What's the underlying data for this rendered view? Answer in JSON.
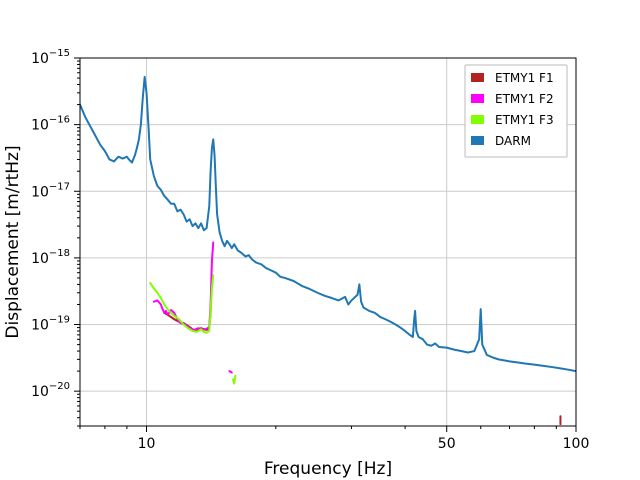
{
  "chart_data": {
    "type": "line",
    "xscale": "log",
    "yscale": "log",
    "xlim": [
      7,
      100
    ],
    "ylim": [
      3e-21,
      1e-15
    ],
    "xlabel": "Frequency [Hz]",
    "ylabel": "Displacement [m/rtHz]",
    "grid": true,
    "legend_position": "top-right",
    "x_ticks": [
      {
        "value": 10,
        "label": "10"
      },
      {
        "value": 50,
        "label": "50"
      },
      {
        "value": 100,
        "label": "100"
      }
    ],
    "x_minor_ticks": [
      7,
      8,
      9,
      20,
      30,
      40,
      60,
      70,
      80,
      90
    ],
    "y_ticks": [
      {
        "value": 1e-20,
        "exp": "−20"
      },
      {
        "value": 1e-19,
        "exp": "−19"
      },
      {
        "value": 1e-18,
        "exp": "−18"
      },
      {
        "value": 1e-17,
        "exp": "−17"
      },
      {
        "value": 1e-16,
        "exp": "−16"
      },
      {
        "value": 1e-15,
        "exp": "−15"
      }
    ],
    "series": [
      {
        "name": "ETMY1 F1",
        "color": "#b22222",
        "segments": [
          [
            [
              11.0,
              1.5e-19
            ],
            [
              11.3,
              1.35e-19
            ],
            [
              11.6,
              1.2e-19
            ],
            [
              11.9,
              1.1e-19
            ],
            [
              12.2,
              1.05e-19
            ],
            [
              12.5,
              9.5e-20
            ],
            [
              12.8,
              8.5e-20
            ],
            [
              13.0,
              8e-20
            ],
            [
              13.2,
              8.5e-20
            ],
            [
              13.4,
              8.8e-20
            ],
            [
              13.6,
              8.5e-20
            ],
            [
              13.8,
              8.3e-20
            ],
            [
              14.0,
              8.8e-20
            ],
            [
              14.1,
              1.5e-19
            ],
            [
              14.2,
              5.5e-19
            ]
          ],
          [
            [
              92.0,
              3.2e-21
            ],
            [
              92.0,
              4.2e-21
            ]
          ]
        ]
      },
      {
        "name": "ETMY1 F2",
        "color": "#ff00ff",
        "segments": [
          [
            [
              10.4,
              2.2e-19
            ],
            [
              10.6,
              2.3e-19
            ],
            [
              10.8,
              2e-19
            ],
            [
              10.9,
              1.7e-19
            ],
            [
              11.0,
              1.5e-19
            ],
            [
              11.1,
              1.6e-19
            ],
            [
              11.2,
              1.4e-19
            ],
            [
              11.4,
              1.65e-19
            ],
            [
              11.6,
              1.5e-19
            ],
            [
              11.8,
              1.2e-19
            ],
            [
              12.0,
              1.05e-19
            ],
            [
              12.3,
              1e-19
            ],
            [
              12.6,
              8.8e-20
            ],
            [
              12.9,
              8.3e-20
            ],
            [
              13.2,
              8.8e-20
            ],
            [
              13.5,
              8.4e-20
            ],
            [
              13.8,
              8.6e-20
            ],
            [
              14.0,
              9.2e-20
            ],
            [
              14.1,
              2e-19
            ],
            [
              14.2,
              9e-19
            ],
            [
              14.3,
              1.7e-18
            ]
          ],
          [
            [
              15.6,
              2e-20
            ],
            [
              15.8,
              1.9e-20
            ]
          ]
        ]
      },
      {
        "name": "ETMY1 F3",
        "color": "#80ff00",
        "segments": [
          [
            [
              10.2,
              4.2e-19
            ],
            [
              10.4,
              3.5e-19
            ],
            [
              10.6,
              3e-19
            ],
            [
              10.8,
              2.5e-19
            ],
            [
              11.0,
              2e-19
            ],
            [
              11.2,
              1.7e-19
            ],
            [
              11.4,
              1.5e-19
            ],
            [
              11.6,
              1.35e-19
            ],
            [
              11.9,
              1.2e-19
            ],
            [
              12.2,
              1e-19
            ],
            [
              12.5,
              8.8e-20
            ],
            [
              12.8,
              8e-20
            ],
            [
              13.1,
              7.8e-20
            ],
            [
              13.4,
              8.5e-20
            ],
            [
              13.6,
              7.8e-20
            ],
            [
              13.8,
              7.5e-20
            ],
            [
              14.0,
              8e-20
            ],
            [
              14.1,
              1.6e-19
            ],
            [
              14.2,
              3.5e-19
            ],
            [
              14.3,
              5.5e-19
            ]
          ],
          [
            [
              15.9,
              1.5e-20
            ],
            [
              16.0,
              1.3e-20
            ],
            [
              16.1,
              1.7e-20
            ]
          ]
        ]
      },
      {
        "name": "DARM",
        "color": "#1f77b4",
        "segments": [
          [
            [
              7.0,
              2e-16
            ],
            [
              7.2,
              1.3e-16
            ],
            [
              7.5,
              8e-17
            ],
            [
              7.8,
              5e-17
            ],
            [
              8.0,
              4e-17
            ],
            [
              8.2,
              3e-17
            ],
            [
              8.4,
              2.8e-17
            ],
            [
              8.6,
              3.3e-17
            ],
            [
              8.8,
              3.1e-17
            ],
            [
              9.0,
              3.3e-17
            ],
            [
              9.1,
              3e-17
            ],
            [
              9.25,
              2.7e-17
            ],
            [
              9.4,
              3.5e-17
            ],
            [
              9.5,
              4.5e-17
            ],
            [
              9.6,
              6e-17
            ],
            [
              9.7,
              1e-16
            ],
            [
              9.8,
              2.5e-16
            ],
            [
              9.9,
              5.2e-16
            ],
            [
              10.0,
              3e-16
            ],
            [
              10.1,
              1e-16
            ],
            [
              10.2,
              3e-17
            ],
            [
              10.4,
              1.7e-17
            ],
            [
              10.6,
              1.2e-17
            ],
            [
              10.8,
              1.05e-17
            ],
            [
              11.0,
              8.5e-18
            ],
            [
              11.2,
              7.5e-18
            ],
            [
              11.4,
              6.5e-18
            ],
            [
              11.6,
              6.5e-18
            ],
            [
              11.8,
              5e-18
            ],
            [
              12.0,
              5.3e-18
            ],
            [
              12.2,
              4.5e-18
            ],
            [
              12.4,
              3.5e-18
            ],
            [
              12.6,
              3.8e-18
            ],
            [
              12.8,
              3e-18
            ],
            [
              13.0,
              3.3e-18
            ],
            [
              13.2,
              2.8e-18
            ],
            [
              13.4,
              3.3e-18
            ],
            [
              13.6,
              2.6e-18
            ],
            [
              13.8,
              2.8e-18
            ],
            [
              14.0,
              6e-18
            ],
            [
              14.1,
              2e-17
            ],
            [
              14.2,
              4.5e-17
            ],
            [
              14.3,
              6e-17
            ],
            [
              14.4,
              3.5e-17
            ],
            [
              14.5,
              1.2e-17
            ],
            [
              14.6,
              4.5e-18
            ],
            [
              14.8,
              2.4e-18
            ],
            [
              15.0,
              1.8e-18
            ],
            [
              15.2,
              1.5e-18
            ],
            [
              15.4,
              1.8e-18
            ],
            [
              15.6,
              1.6e-18
            ],
            [
              15.8,
              1.4e-18
            ],
            [
              16.0,
              1.6e-18
            ],
            [
              16.3,
              1.3e-18
            ],
            [
              16.6,
              1.2e-18
            ],
            [
              17.0,
              1.05e-18
            ],
            [
              17.3,
              1.1e-18
            ],
            [
              17.6,
              9.5e-19
            ],
            [
              18.0,
              8.5e-19
            ],
            [
              18.5,
              8e-19
            ],
            [
              19.0,
              7e-19
            ],
            [
              19.5,
              6.5e-19
            ],
            [
              20.0,
              6e-19
            ],
            [
              20.5,
              5.2e-19
            ],
            [
              21.0,
              5e-19
            ],
            [
              22.0,
              4.5e-19
            ],
            [
              23.0,
              3.8e-19
            ],
            [
              24.0,
              3.4e-19
            ],
            [
              25.0,
              3e-19
            ],
            [
              26.0,
              2.7e-19
            ],
            [
              27.0,
              2.5e-19
            ],
            [
              28.0,
              2.3e-19
            ],
            [
              29.0,
              2.6e-19
            ],
            [
              29.5,
              2e-19
            ],
            [
              30.0,
              2.3e-19
            ],
            [
              31.0,
              2.8e-19
            ],
            [
              31.3,
              4e-19
            ],
            [
              31.6,
              2.2e-19
            ],
            [
              32.0,
              1.8e-19
            ],
            [
              33.0,
              1.6e-19
            ],
            [
              34.0,
              1.5e-19
            ],
            [
              35.0,
              1.3e-19
            ],
            [
              36.0,
              1.2e-19
            ],
            [
              37.0,
              1.1e-19
            ],
            [
              38.0,
              1e-19
            ],
            [
              39.0,
              9e-20
            ],
            [
              40.0,
              8e-20
            ],
            [
              41.0,
              7e-20
            ],
            [
              41.7,
              6.5e-20
            ],
            [
              42.0,
              1.2e-19
            ],
            [
              42.2,
              1.6e-19
            ],
            [
              42.5,
              8e-20
            ],
            [
              43.0,
              6.5e-20
            ],
            [
              44.0,
              6e-20
            ],
            [
              45.0,
              5e-20
            ],
            [
              46.0,
              4.8e-20
            ],
            [
              47.0,
              5.2e-20
            ],
            [
              48.0,
              4.6e-20
            ],
            [
              50.0,
              4.5e-20
            ],
            [
              52.0,
              4.2e-20
            ],
            [
              54.0,
              4e-20
            ],
            [
              56.0,
              3.8e-20
            ],
            [
              58.0,
              4e-20
            ],
            [
              59.5,
              6e-20
            ],
            [
              60.0,
              1.7e-19
            ],
            [
              60.5,
              5e-20
            ],
            [
              62.0,
              3.5e-20
            ],
            [
              64.0,
              3.2e-20
            ],
            [
              66.0,
              3e-20
            ],
            [
              68.0,
              2.9e-20
            ],
            [
              70.0,
              2.8e-20
            ],
            [
              73.0,
              2.7e-20
            ],
            [
              76.0,
              2.6e-20
            ],
            [
              80.0,
              2.5e-20
            ],
            [
              84.0,
              2.4e-20
            ],
            [
              88.0,
              2.3e-20
            ],
            [
              92.0,
              2.2e-20
            ],
            [
              96.0,
              2.1e-20
            ],
            [
              100.0,
              2e-20
            ]
          ]
        ]
      }
    ]
  }
}
